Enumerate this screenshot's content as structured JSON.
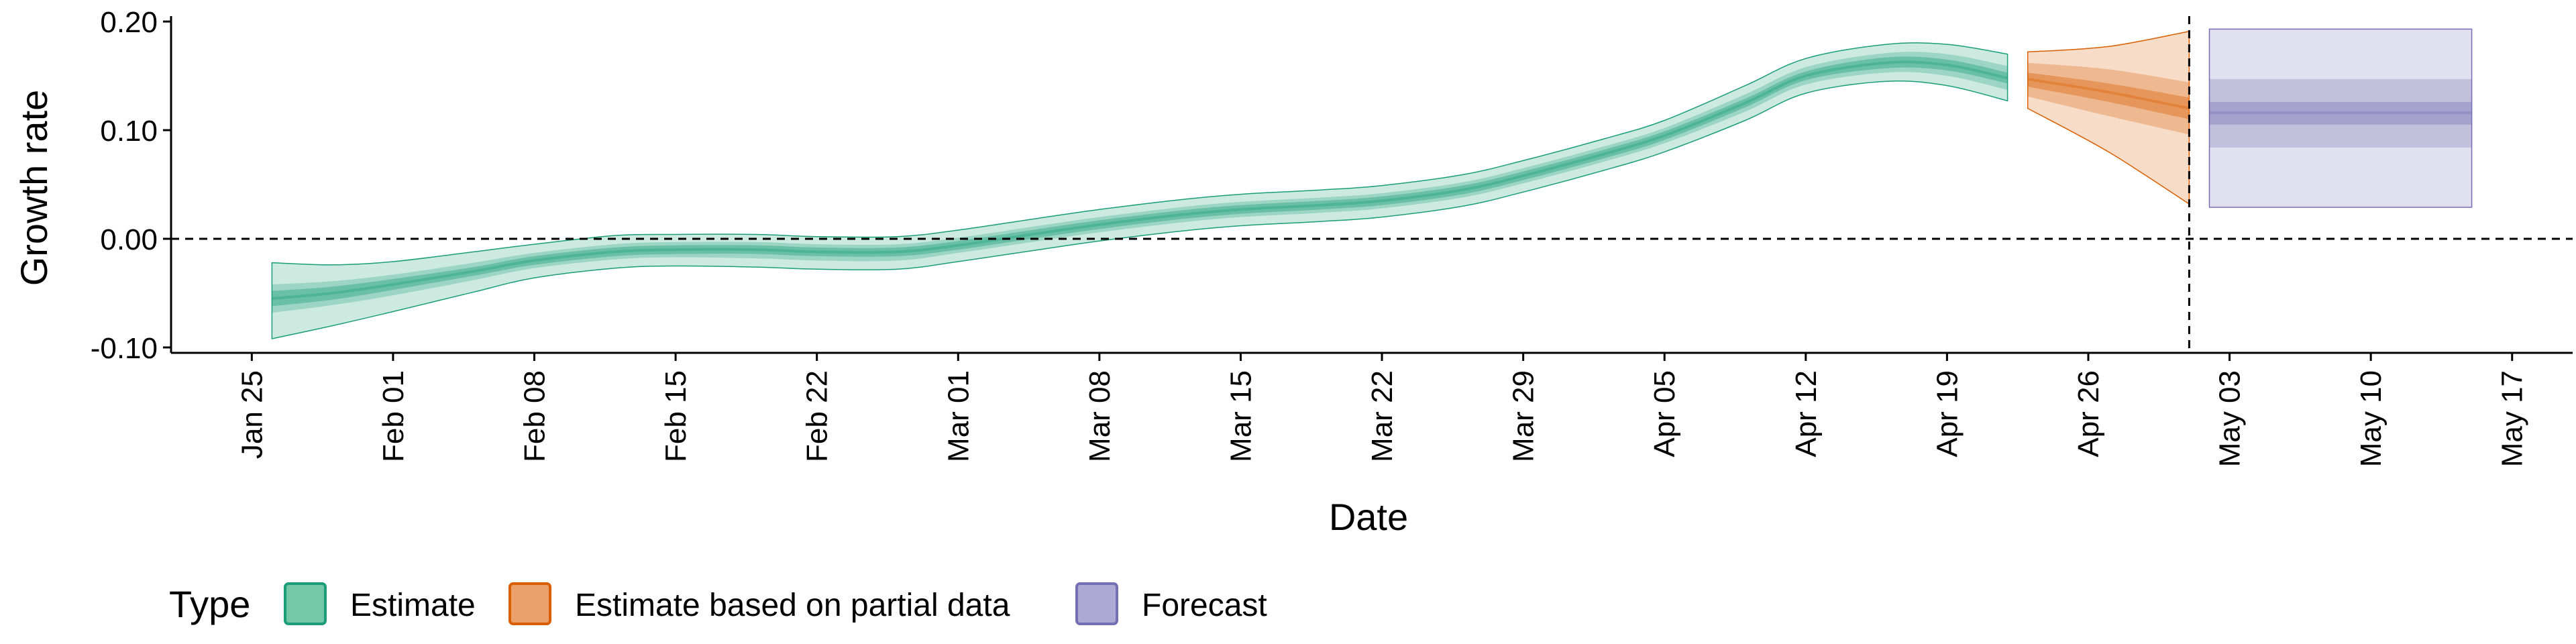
{
  "chart_data": {
    "type": "area",
    "title": "",
    "xlabel": "Date",
    "ylabel": "Growth rate",
    "ylim": [
      -0.105,
      0.205
    ],
    "xlim": [
      "2021-01-21",
      "2021-05-20"
    ],
    "y_ticks": [
      -0.1,
      0.0,
      0.1,
      0.2
    ],
    "y_tick_labels": [
      "-0.10",
      "0.00",
      "0.10",
      "0.20"
    ],
    "x_ticks": [
      "2021-01-25",
      "2021-02-01",
      "2021-02-08",
      "2021-02-15",
      "2021-02-22",
      "2021-03-01",
      "2021-03-08",
      "2021-03-15",
      "2021-03-22",
      "2021-03-29",
      "2021-04-05",
      "2021-04-12",
      "2021-04-19",
      "2021-04-26",
      "2021-05-03",
      "2021-05-10",
      "2021-05-17"
    ],
    "x_tick_labels": [
      "Jan 25",
      "Feb 01",
      "Feb 08",
      "Feb 15",
      "Feb 22",
      "Mar 01",
      "Mar 08",
      "Mar 15",
      "Mar 22",
      "Mar 29",
      "Apr 05",
      "Apr 12",
      "Apr 19",
      "Apr 26",
      "May 03",
      "May 10",
      "May 17"
    ],
    "reference_lines": {
      "horizontal_y": 0.0,
      "vertical_date": "2021-05-01"
    },
    "grid": false,
    "legend": {
      "title": "Type",
      "position": "bottom",
      "items": [
        {
          "label": "Estimate",
          "color": "#1b9e77",
          "fill": "#74c7a9"
        },
        {
          "label": "Estimate based on partial data",
          "color": "#d95f02",
          "fill": "#eca06a"
        },
        {
          "label": "Forecast",
          "color": "#7570b3",
          "fill": "#aeaad3"
        }
      ]
    },
    "series": [
      {
        "name": "Estimate",
        "color": "#1b9e77",
        "points": [
          {
            "x": "2021-01-26",
            "median": -0.055,
            "lower20": -0.062,
            "upper20": -0.048,
            "lower50": -0.068,
            "upper50": -0.042,
            "lower90": -0.092,
            "upper90": -0.022
          },
          {
            "x": "2021-01-29",
            "median": -0.05,
            "lower20": -0.056,
            "upper20": -0.044,
            "lower50": -0.061,
            "upper50": -0.039,
            "lower90": -0.08,
            "upper90": -0.024
          },
          {
            "x": "2021-02-01",
            "median": -0.042,
            "lower20": -0.047,
            "upper20": -0.037,
            "lower50": -0.052,
            "upper50": -0.033,
            "lower90": -0.067,
            "upper90": -0.021
          },
          {
            "x": "2021-02-05",
            "median": -0.03,
            "lower20": -0.034,
            "upper20": -0.026,
            "lower50": -0.038,
            "upper50": -0.022,
            "lower90": -0.049,
            "upper90": -0.012
          },
          {
            "x": "2021-02-08",
            "median": -0.02,
            "lower20": -0.024,
            "upper20": -0.016,
            "lower50": -0.027,
            "upper50": -0.013,
            "lower90": -0.036,
            "upper90": -0.005
          },
          {
            "x": "2021-02-12",
            "median": -0.012,
            "lower20": -0.016,
            "upper20": -0.008,
            "lower50": -0.019,
            "upper50": -0.005,
            "lower90": -0.027,
            "upper90": 0.003
          },
          {
            "x": "2021-02-15",
            "median": -0.01,
            "lower20": -0.014,
            "upper20": -0.006,
            "lower50": -0.017,
            "upper50": -0.003,
            "lower90": -0.025,
            "upper90": 0.004
          },
          {
            "x": "2021-02-19",
            "median": -0.01,
            "lower20": -0.014,
            "upper20": -0.006,
            "lower50": -0.018,
            "upper50": -0.003,
            "lower90": -0.026,
            "upper90": 0.004
          },
          {
            "x": "2021-02-22",
            "median": -0.012,
            "lower20": -0.016,
            "upper20": -0.008,
            "lower50": -0.02,
            "upper50": -0.005,
            "lower90": -0.028,
            "upper90": 0.002
          },
          {
            "x": "2021-02-26",
            "median": -0.012,
            "lower20": -0.016,
            "upper20": -0.008,
            "lower50": -0.02,
            "upper50": -0.005,
            "lower90": -0.028,
            "upper90": 0.002
          },
          {
            "x": "2021-03-01",
            "median": -0.006,
            "lower20": -0.01,
            "upper20": -0.002,
            "lower50": -0.013,
            "upper50": 0.001,
            "lower90": -0.021,
            "upper90": 0.008
          },
          {
            "x": "2021-03-05",
            "median": 0.005,
            "lower20": 0.001,
            "upper20": 0.009,
            "lower50": -0.002,
            "upper50": 0.012,
            "lower90": -0.01,
            "upper90": 0.019
          },
          {
            "x": "2021-03-08",
            "median": 0.013,
            "lower20": 0.009,
            "upper20": 0.017,
            "lower50": 0.006,
            "upper50": 0.02,
            "lower90": -0.002,
            "upper90": 0.027
          },
          {
            "x": "2021-03-12",
            "median": 0.022,
            "lower20": 0.018,
            "upper20": 0.026,
            "lower50": 0.015,
            "upper50": 0.029,
            "lower90": 0.007,
            "upper90": 0.036
          },
          {
            "x": "2021-03-15",
            "median": 0.027,
            "lower20": 0.023,
            "upper20": 0.031,
            "lower50": 0.02,
            "upper50": 0.034,
            "lower90": 0.012,
            "upper90": 0.041
          },
          {
            "x": "2021-03-19",
            "median": 0.031,
            "lower20": 0.027,
            "upper20": 0.035,
            "lower50": 0.024,
            "upper50": 0.038,
            "lower90": 0.016,
            "upper90": 0.045
          },
          {
            "x": "2021-03-22",
            "median": 0.035,
            "lower20": 0.031,
            "upper20": 0.039,
            "lower50": 0.028,
            "upper50": 0.042,
            "lower90": 0.02,
            "upper90": 0.049
          },
          {
            "x": "2021-03-26",
            "median": 0.045,
            "lower20": 0.041,
            "upper20": 0.049,
            "lower50": 0.038,
            "upper50": 0.052,
            "lower90": 0.03,
            "upper90": 0.059
          },
          {
            "x": "2021-03-29",
            "median": 0.058,
            "lower20": 0.054,
            "upper20": 0.062,
            "lower50": 0.051,
            "upper50": 0.065,
            "lower90": 0.043,
            "upper90": 0.072
          },
          {
            "x": "2021-04-02",
            "median": 0.078,
            "lower20": 0.074,
            "upper20": 0.082,
            "lower50": 0.071,
            "upper50": 0.085,
            "lower90": 0.063,
            "upper90": 0.092
          },
          {
            "x": "2021-04-05",
            "median": 0.095,
            "lower20": 0.091,
            "upper20": 0.099,
            "lower50": 0.088,
            "upper50": 0.102,
            "lower90": 0.08,
            "upper90": 0.109
          },
          {
            "x": "2021-04-09",
            "median": 0.125,
            "lower20": 0.121,
            "upper20": 0.129,
            "lower50": 0.117,
            "upper50": 0.133,
            "lower90": 0.109,
            "upper90": 0.141
          },
          {
            "x": "2021-04-12",
            "median": 0.15,
            "lower20": 0.146,
            "upper20": 0.154,
            "lower50": 0.142,
            "upper50": 0.158,
            "lower90": 0.134,
            "upper90": 0.166
          },
          {
            "x": "2021-04-16",
            "median": 0.162,
            "lower20": 0.157,
            "upper20": 0.167,
            "lower50": 0.153,
            "upper50": 0.171,
            "lower90": 0.145,
            "upper90": 0.179
          },
          {
            "x": "2021-04-19",
            "median": 0.16,
            "lower20": 0.155,
            "upper20": 0.165,
            "lower50": 0.15,
            "upper50": 0.17,
            "lower90": 0.141,
            "upper90": 0.179
          },
          {
            "x": "2021-04-22",
            "median": 0.148,
            "lower20": 0.143,
            "upper20": 0.153,
            "lower50": 0.137,
            "upper50": 0.159,
            "lower90": 0.127,
            "upper90": 0.17
          }
        ]
      },
      {
        "name": "Estimate based on partial data",
        "color": "#d95f02",
        "points": [
          {
            "x": "2021-04-23",
            "median": 0.147,
            "lower20": 0.14,
            "upper20": 0.153,
            "lower50": 0.131,
            "upper50": 0.162,
            "lower90": 0.12,
            "upper90": 0.172
          },
          {
            "x": "2021-04-27",
            "median": 0.135,
            "lower20": 0.126,
            "upper20": 0.143,
            "lower50": 0.113,
            "upper50": 0.156,
            "lower90": 0.08,
            "upper90": 0.177
          },
          {
            "x": "2021-05-01",
            "median": 0.12,
            "lower20": 0.11,
            "upper20": 0.13,
            "lower50": 0.096,
            "upper50": 0.144,
            "lower90": 0.032,
            "upper90": 0.191
          }
        ]
      },
      {
        "name": "Forecast",
        "color": "#7570b3",
        "points": [
          {
            "x": "2021-05-02",
            "median": 0.116,
            "lower20": 0.105,
            "upper20": 0.126,
            "lower50": 0.084,
            "upper50": 0.147,
            "lower90": 0.029,
            "upper90": 0.193
          },
          {
            "x": "2021-05-15",
            "median": 0.116,
            "lower20": 0.105,
            "upper20": 0.126,
            "lower50": 0.084,
            "upper50": 0.147,
            "lower90": 0.029,
            "upper90": 0.193
          }
        ]
      }
    ]
  }
}
